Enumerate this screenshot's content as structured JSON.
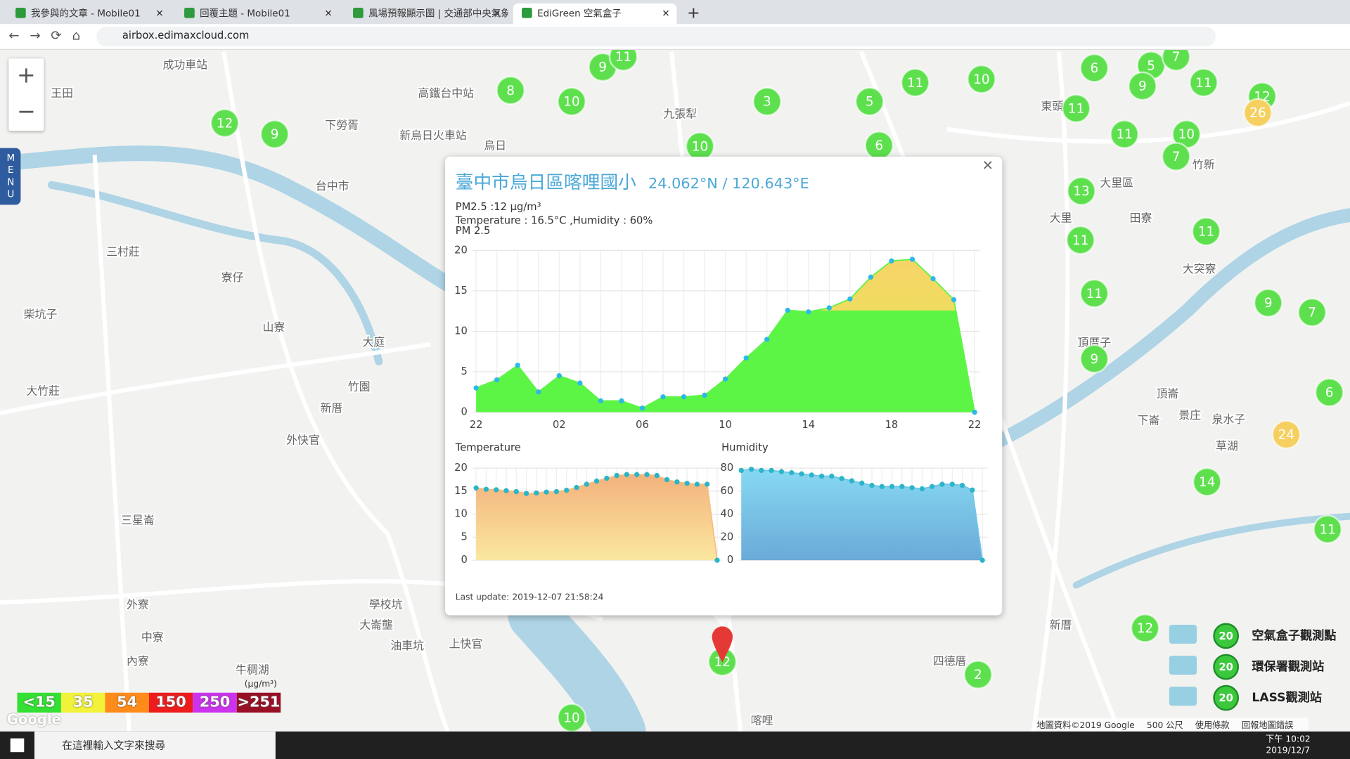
{
  "browser": {
    "tabs": [
      "我參與的文章 - Mobile01",
      "回覆主題 - Mobile01",
      "風場預報顯示圖 | 交通部中央氣象局",
      "EdiGreen 空氣盒子"
    ],
    "new_tab": "+",
    "address": "airbox.edimaxcloud.com"
  },
  "map": {
    "zoom_in": "+",
    "zoom_out": "−",
    "menu": "MENU",
    "markers": [
      {
        "value": 9,
        "color": "#5ee04e"
      },
      {
        "value": 11,
        "color": "#5ee04e"
      },
      {
        "value": 8,
        "color": "#5ee04e"
      },
      {
        "value": 10,
        "color": "#5ee04e"
      },
      {
        "value": 3,
        "color": "#5ee04e"
      },
      {
        "value": 5,
        "color": "#5ee04e"
      },
      {
        "value": 11,
        "color": "#5ee04e"
      },
      {
        "value": 10,
        "color": "#5ee04e"
      },
      {
        "value": 6,
        "color": "#5ee04e"
      },
      {
        "value": 5,
        "color": "#5ee04e"
      },
      {
        "value": 7,
        "color": "#5ee04e"
      },
      {
        "value": 9,
        "color": "#5ee04e"
      },
      {
        "value": 11,
        "color": "#5ee04e"
      },
      {
        "value": 12,
        "color": "#5ee04e"
      },
      {
        "value": 26,
        "color": "#f5d060"
      },
      {
        "value": 11,
        "color": "#5ee04e"
      },
      {
        "value": 11,
        "color": "#5ee04e"
      },
      {
        "value": 10,
        "color": "#5ee04e"
      },
      {
        "value": 7,
        "color": "#5ee04e"
      },
      {
        "value": 6,
        "color": "#5ee04e"
      },
      {
        "value": 10,
        "color": "#5ee04e"
      },
      {
        "value": 12,
        "color": "#5ee04e"
      },
      {
        "value": 9,
        "color": "#5ee04e"
      },
      {
        "value": 13,
        "color": "#5ee04e"
      },
      {
        "value": 11,
        "color": "#5ee04e"
      },
      {
        "value": 11,
        "color": "#5ee04e"
      },
      {
        "value": 11,
        "color": "#5ee04e"
      },
      {
        "value": 9,
        "color": "#5ee04e"
      },
      {
        "value": 9,
        "color": "#5ee04e"
      },
      {
        "value": 7,
        "color": "#5ee04e"
      },
      {
        "value": 6,
        "color": "#5ee04e"
      },
      {
        "value": 24,
        "color": "#f5d060"
      },
      {
        "value": 14,
        "color": "#5ee04e"
      },
      {
        "value": 11,
        "color": "#5ee04e"
      },
      {
        "value": 12,
        "color": "#5ee04e"
      },
      {
        "value": 2,
        "color": "#5ee04e"
      },
      {
        "value": 12,
        "color": "#5ee04e"
      },
      {
        "value": 10,
        "color": "#5ee04e"
      }
    ],
    "places": [
      "九張犁",
      "烏日",
      "大里區",
      "大突寮",
      "三村莊",
      "山寮",
      "大庭",
      "竹園",
      "新厝",
      "外快官",
      "大竹莊",
      "柴坑子",
      "三星崙",
      "學校坑",
      "大崙壟",
      "油車坑",
      "上快官",
      "牛稠湖",
      "中寮",
      "內寮",
      "外寮",
      "頂崙",
      "下崙",
      "景庄",
      "泉水子",
      "草湖",
      "新厝",
      "四德厝",
      "喀哩",
      "頂厝子",
      "田寮",
      "大里",
      "高鐵台中站",
      "成功車站",
      "王田",
      "下勞胥",
      "新烏日火車站",
      "台中市",
      "寮仔",
      "竹新",
      "東頭"
    ],
    "scale_legend": {
      "unit": "(μg/m³)",
      "items": [
        {
          "label": "<15",
          "color": "#33e033"
        },
        {
          "label": "35",
          "color": "#f2f23a"
        },
        {
          "label": "54",
          "color": "#ff8c1a"
        },
        {
          "label": "150",
          "color": "#ee1c1c"
        },
        {
          "label": "250",
          "color": "#cc33ee"
        },
        {
          "label": ">251",
          "color": "#990f24"
        }
      ]
    },
    "station_legend": [
      {
        "count": 20,
        "label": "空氣盒子觀測點"
      },
      {
        "count": 20,
        "label": "環保署觀測站"
      },
      {
        "count": 20,
        "label": "LASS觀測站"
      }
    ],
    "footer": [
      "地圖資料©2019 Google",
      "500 公尺",
      "使用條款",
      "回報地圖錯誤"
    ],
    "google": "Google"
  },
  "popup": {
    "title": "臺中市烏日區喀哩國小",
    "coords": "24.062°N / 120.643°E",
    "pm25": "PM2.5 :12 μg/m³",
    "weather": "Temperature : 16.5°C ,Humidity : 60%",
    "last_update": "Last update: 2019-12-07 21:58:24",
    "close": "×"
  },
  "chart_data": [
    {
      "type": "area",
      "title": "PM 2.5",
      "categories": [
        "22",
        null,
        null,
        null,
        "02",
        null,
        null,
        null,
        "06",
        null,
        null,
        null,
        "10",
        null,
        null,
        null,
        "14",
        null,
        null,
        null,
        "18",
        null,
        null,
        null,
        "22"
      ],
      "values": [
        3,
        4,
        5.8,
        2.5,
        4.5,
        3.6,
        1.4,
        1.4,
        0.5,
        1.9,
        1.9,
        2.1,
        4.1,
        6.7,
        9,
        12.6,
        12.4,
        12.9,
        14,
        16.7,
        18.7,
        18.9,
        16.5,
        13.9,
        0
      ],
      "color": "#5cf545",
      "marker_color": "#2eb8e6",
      "ylim": [
        0,
        20
      ],
      "yticks": [
        0,
        5,
        10,
        15,
        20
      ],
      "grid": true
    },
    {
      "type": "area",
      "title": "Temperature",
      "values": [
        15.7,
        15.4,
        15.3,
        15.1,
        14.9,
        14.5,
        14.6,
        14.8,
        14.9,
        15.2,
        15.8,
        16.5,
        17.2,
        17.8,
        18.4,
        18.6,
        18.6,
        18.6,
        18.4,
        17.5,
        17,
        16.7,
        16.5,
        16.5,
        0
      ],
      "color": "#f5c080",
      "marker_color": "#2bb5c9",
      "ylim": [
        0,
        20
      ],
      "yticks": [
        0,
        5,
        10,
        15,
        20
      ],
      "grid": true
    },
    {
      "type": "area",
      "title": "Humidity",
      "values": [
        78,
        79,
        78,
        78,
        77,
        76,
        75,
        74,
        73,
        73,
        71,
        69,
        67,
        65,
        64,
        64,
        64,
        63,
        62,
        64,
        66,
        66,
        65,
        61,
        0
      ],
      "color": "#6fc4ea",
      "marker_color": "#2bb5c9",
      "ylim": [
        0,
        80
      ],
      "yticks": [
        0,
        20,
        40,
        60,
        80
      ],
      "grid": true
    }
  ],
  "taskbar": {
    "search": "在這裡輸入文字來搜尋",
    "time": "下午 10:02",
    "date": "2019/12/7"
  }
}
